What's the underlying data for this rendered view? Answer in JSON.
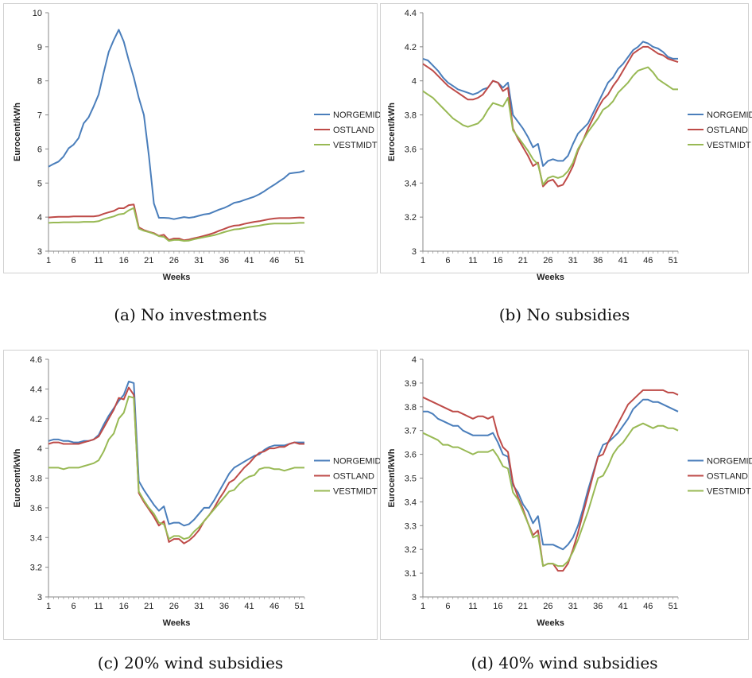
{
  "colors": {
    "NORGEMIDT": "#4a7ebb",
    "OSTLAND": "#be4b48",
    "VESTMIDT": "#98b954",
    "grid": "#000000"
  },
  "legend": [
    "NORGEMIDT",
    "OSTLAND",
    "VESTMIDT"
  ],
  "chart_data": [
    {
      "type": "line",
      "caption": "(a) No investments",
      "xlabel": "Weeks",
      "ylabel": "Eurocent/kWh",
      "x_ticks": [
        "1",
        "6",
        "11",
        "16",
        "21",
        "26",
        "31",
        "36",
        "41",
        "46",
        "51"
      ],
      "y_ticks": [
        "3",
        "4",
        "5",
        "6",
        "7",
        "8",
        "9",
        "10"
      ],
      "ylim": [
        3,
        10
      ],
      "x": [
        1,
        2,
        3,
        4,
        5,
        6,
        7,
        8,
        9,
        10,
        11,
        12,
        13,
        14,
        15,
        16,
        17,
        18,
        19,
        20,
        21,
        22,
        23,
        24,
        25,
        26,
        27,
        28,
        29,
        30,
        31,
        32,
        33,
        34,
        35,
        36,
        37,
        38,
        39,
        40,
        41,
        42,
        43,
        44,
        45,
        46,
        47,
        48,
        49,
        50,
        51,
        52
      ],
      "series": [
        {
          "name": "NORGEMIDT",
          "values": [
            5.48,
            5.56,
            5.63,
            5.78,
            6.02,
            6.13,
            6.32,
            6.75,
            6.93,
            7.25,
            7.6,
            8.25,
            8.85,
            9.2,
            9.5,
            9.15,
            8.6,
            8.1,
            7.5,
            7.0,
            5.8,
            4.4,
            3.98,
            3.98,
            3.97,
            3.94,
            3.97,
            4.0,
            3.98,
            4.0,
            4.04,
            4.08,
            4.1,
            4.16,
            4.22,
            4.27,
            4.34,
            4.42,
            4.45,
            4.5,
            4.55,
            4.6,
            4.67,
            4.76,
            4.86,
            4.95,
            5.05,
            5.15,
            5.28,
            5.3,
            5.32,
            5.36
          ]
        },
        {
          "name": "OSTLAND",
          "values": [
            3.99,
            4.0,
            4.01,
            4.01,
            4.01,
            4.02,
            4.02,
            4.02,
            4.02,
            4.02,
            4.04,
            4.1,
            4.14,
            4.18,
            4.26,
            4.26,
            4.35,
            4.37,
            3.7,
            3.62,
            3.57,
            3.53,
            3.45,
            3.48,
            3.33,
            3.37,
            3.37,
            3.32,
            3.34,
            3.38,
            3.41,
            3.45,
            3.49,
            3.54,
            3.6,
            3.65,
            3.71,
            3.75,
            3.76,
            3.8,
            3.83,
            3.86,
            3.88,
            3.91,
            3.94,
            3.96,
            3.97,
            3.97,
            3.97,
            3.98,
            3.99,
            3.98
          ]
        },
        {
          "name": "VESTMIDT",
          "values": [
            3.83,
            3.84,
            3.84,
            3.85,
            3.85,
            3.85,
            3.85,
            3.86,
            3.86,
            3.86,
            3.88,
            3.94,
            3.98,
            4.02,
            4.08,
            4.1,
            4.2,
            4.27,
            3.66,
            3.6,
            3.56,
            3.51,
            3.44,
            3.42,
            3.3,
            3.33,
            3.33,
            3.3,
            3.31,
            3.35,
            3.38,
            3.41,
            3.44,
            3.47,
            3.51,
            3.56,
            3.6,
            3.64,
            3.65,
            3.68,
            3.71,
            3.73,
            3.75,
            3.78,
            3.8,
            3.81,
            3.81,
            3.81,
            3.81,
            3.82,
            3.83,
            3.83
          ]
        }
      ]
    },
    {
      "type": "line",
      "caption": "(b) No subsidies",
      "xlabel": "Weeks",
      "ylabel": "Eurocent/kWh",
      "x_ticks": [
        "1",
        "6",
        "11",
        "16",
        "21",
        "26",
        "31",
        "36",
        "41",
        "46",
        "51"
      ],
      "y_ticks": [
        "3",
        "3.2",
        "3.4",
        "3.6",
        "3.8",
        "4",
        "4.2",
        "4.4"
      ],
      "ylim": [
        3,
        4.4
      ],
      "x": [
        1,
        2,
        3,
        4,
        5,
        6,
        7,
        8,
        9,
        10,
        11,
        12,
        13,
        14,
        15,
        16,
        17,
        18,
        19,
        20,
        21,
        22,
        23,
        24,
        25,
        26,
        27,
        28,
        29,
        30,
        31,
        32,
        33,
        34,
        35,
        36,
        37,
        38,
        39,
        40,
        41,
        42,
        43,
        44,
        45,
        46,
        47,
        48,
        49,
        50,
        51,
        52
      ],
      "series": [
        {
          "name": "NORGEMIDT",
          "values": [
            4.13,
            4.12,
            4.09,
            4.06,
            4.02,
            3.99,
            3.97,
            3.95,
            3.94,
            3.93,
            3.92,
            3.93,
            3.95,
            3.96,
            4.0,
            3.99,
            3.96,
            3.99,
            3.8,
            3.76,
            3.72,
            3.67,
            3.61,
            3.63,
            3.5,
            3.53,
            3.54,
            3.53,
            3.53,
            3.56,
            3.63,
            3.69,
            3.72,
            3.75,
            3.81,
            3.87,
            3.93,
            3.99,
            4.02,
            4.07,
            4.1,
            4.14,
            4.18,
            4.2,
            4.23,
            4.22,
            4.2,
            4.19,
            4.17,
            4.14,
            4.13,
            4.13
          ]
        },
        {
          "name": "OSTLAND",
          "values": [
            4.1,
            4.08,
            4.06,
            4.03,
            4.0,
            3.97,
            3.95,
            3.93,
            3.91,
            3.89,
            3.89,
            3.9,
            3.92,
            3.96,
            4.0,
            3.99,
            3.94,
            3.96,
            3.72,
            3.66,
            3.61,
            3.56,
            3.5,
            3.52,
            3.38,
            3.41,
            3.42,
            3.38,
            3.39,
            3.44,
            3.5,
            3.59,
            3.65,
            3.72,
            3.78,
            3.84,
            3.89,
            3.92,
            3.97,
            4.01,
            4.06,
            4.11,
            4.16,
            4.18,
            4.2,
            4.2,
            4.18,
            4.16,
            4.15,
            4.13,
            4.12,
            4.11
          ]
        },
        {
          "name": "VESTMIDT",
          "values": [
            3.94,
            3.92,
            3.9,
            3.87,
            3.84,
            3.81,
            3.78,
            3.76,
            3.74,
            3.73,
            3.74,
            3.75,
            3.78,
            3.83,
            3.87,
            3.86,
            3.85,
            3.9,
            3.71,
            3.67,
            3.63,
            3.59,
            3.54,
            3.51,
            3.39,
            3.43,
            3.44,
            3.43,
            3.44,
            3.47,
            3.52,
            3.6,
            3.65,
            3.7,
            3.74,
            3.78,
            3.83,
            3.85,
            3.88,
            3.93,
            3.96,
            3.99,
            4.03,
            4.06,
            4.07,
            4.08,
            4.05,
            4.01,
            3.99,
            3.97,
            3.95,
            3.95
          ]
        }
      ]
    },
    {
      "type": "line",
      "caption": "(c) 20% wind subsidies",
      "xlabel": "Weeks",
      "ylabel": "Eurocent/kWh",
      "x_ticks": [
        "1",
        "6",
        "11",
        "16",
        "21",
        "26",
        "31",
        "36",
        "41",
        "46",
        "51"
      ],
      "y_ticks": [
        "3",
        "3.2",
        "3.4",
        "3.6",
        "3.8",
        "4",
        "4.2",
        "4.4",
        "4.6"
      ],
      "ylim": [
        3,
        4.6
      ],
      "x": [
        1,
        2,
        3,
        4,
        5,
        6,
        7,
        8,
        9,
        10,
        11,
        12,
        13,
        14,
        15,
        16,
        17,
        18,
        19,
        20,
        21,
        22,
        23,
        24,
        25,
        26,
        27,
        28,
        29,
        30,
        31,
        32,
        33,
        34,
        35,
        36,
        37,
        38,
        39,
        40,
        41,
        42,
        43,
        44,
        45,
        46,
        47,
        48,
        49,
        50,
        51,
        52
      ],
      "series": [
        {
          "name": "NORGEMIDT",
          "values": [
            4.05,
            4.06,
            4.06,
            4.05,
            4.05,
            4.04,
            4.04,
            4.05,
            4.05,
            4.06,
            4.09,
            4.16,
            4.22,
            4.27,
            4.32,
            4.36,
            4.45,
            4.44,
            3.78,
            3.72,
            3.67,
            3.62,
            3.58,
            3.61,
            3.49,
            3.5,
            3.5,
            3.48,
            3.49,
            3.52,
            3.56,
            3.6,
            3.6,
            3.65,
            3.71,
            3.77,
            3.83,
            3.87,
            3.89,
            3.91,
            3.93,
            3.95,
            3.96,
            3.99,
            4.01,
            4.02,
            4.02,
            4.02,
            4.03,
            4.04,
            4.04,
            4.04
          ]
        },
        {
          "name": "OSTLAND",
          "values": [
            4.03,
            4.04,
            4.04,
            4.03,
            4.03,
            4.03,
            4.03,
            4.04,
            4.05,
            4.06,
            4.08,
            4.14,
            4.2,
            4.26,
            4.34,
            4.33,
            4.41,
            4.36,
            3.7,
            3.64,
            3.59,
            3.54,
            3.48,
            3.51,
            3.37,
            3.39,
            3.39,
            3.36,
            3.38,
            3.41,
            3.45,
            3.51,
            3.55,
            3.6,
            3.66,
            3.71,
            3.77,
            3.79,
            3.83,
            3.87,
            3.9,
            3.94,
            3.97,
            3.98,
            4.0,
            4.0,
            4.01,
            4.01,
            4.03,
            4.04,
            4.03,
            4.03
          ]
        },
        {
          "name": "VESTMIDT",
          "values": [
            3.87,
            3.87,
            3.87,
            3.86,
            3.87,
            3.87,
            3.87,
            3.88,
            3.89,
            3.9,
            3.92,
            3.98,
            4.06,
            4.1,
            4.2,
            4.24,
            4.35,
            4.34,
            3.71,
            3.65,
            3.6,
            3.56,
            3.5,
            3.49,
            3.39,
            3.41,
            3.41,
            3.39,
            3.4,
            3.44,
            3.47,
            3.51,
            3.55,
            3.59,
            3.63,
            3.67,
            3.71,
            3.72,
            3.76,
            3.79,
            3.81,
            3.82,
            3.86,
            3.87,
            3.87,
            3.86,
            3.86,
            3.85,
            3.86,
            3.87,
            3.87,
            3.87
          ]
        }
      ]
    },
    {
      "type": "line",
      "caption": "(d) 40% wind subsidies",
      "xlabel": "Weeks",
      "ylabel": "Eurocent/kWh",
      "x_ticks": [
        "1",
        "6",
        "11",
        "16",
        "21",
        "26",
        "31",
        "36",
        "41",
        "46",
        "51"
      ],
      "y_ticks": [
        "3",
        "3.1",
        "3.2",
        "3.3",
        "3.4",
        "3.5",
        "3.6",
        "3.7",
        "3.8",
        "3.9",
        "4"
      ],
      "ylim": [
        3,
        4
      ],
      "x": [
        1,
        2,
        3,
        4,
        5,
        6,
        7,
        8,
        9,
        10,
        11,
        12,
        13,
        14,
        15,
        16,
        17,
        18,
        19,
        20,
        21,
        22,
        23,
        24,
        25,
        26,
        27,
        28,
        29,
        30,
        31,
        32,
        33,
        34,
        35,
        36,
        37,
        38,
        39,
        40,
        41,
        42,
        43,
        44,
        45,
        46,
        47,
        48,
        49,
        50,
        51,
        52
      ],
      "series": [
        {
          "name": "NORGEMIDT",
          "values": [
            3.78,
            3.78,
            3.77,
            3.75,
            3.74,
            3.73,
            3.72,
            3.72,
            3.7,
            3.69,
            3.68,
            3.68,
            3.68,
            3.68,
            3.69,
            3.65,
            3.6,
            3.59,
            3.47,
            3.44,
            3.39,
            3.36,
            3.31,
            3.34,
            3.22,
            3.22,
            3.22,
            3.21,
            3.2,
            3.22,
            3.25,
            3.3,
            3.37,
            3.45,
            3.52,
            3.59,
            3.64,
            3.65,
            3.67,
            3.69,
            3.72,
            3.75,
            3.79,
            3.81,
            3.83,
            3.83,
            3.82,
            3.82,
            3.81,
            3.8,
            3.79,
            3.78
          ]
        },
        {
          "name": "OSTLAND",
          "values": [
            3.84,
            3.83,
            3.82,
            3.81,
            3.8,
            3.79,
            3.78,
            3.78,
            3.77,
            3.76,
            3.75,
            3.76,
            3.76,
            3.75,
            3.76,
            3.68,
            3.63,
            3.61,
            3.48,
            3.42,
            3.37,
            3.31,
            3.26,
            3.28,
            3.13,
            3.14,
            3.14,
            3.11,
            3.11,
            3.14,
            3.2,
            3.27,
            3.35,
            3.43,
            3.51,
            3.59,
            3.6,
            3.65,
            3.69,
            3.73,
            3.77,
            3.81,
            3.83,
            3.85,
            3.87,
            3.87,
            3.87,
            3.87,
            3.87,
            3.86,
            3.86,
            3.85
          ]
        },
        {
          "name": "VESTMIDT",
          "values": [
            3.69,
            3.68,
            3.67,
            3.66,
            3.64,
            3.64,
            3.63,
            3.63,
            3.62,
            3.61,
            3.6,
            3.61,
            3.61,
            3.61,
            3.62,
            3.59,
            3.55,
            3.54,
            3.44,
            3.41,
            3.36,
            3.31,
            3.25,
            3.26,
            3.13,
            3.14,
            3.14,
            3.13,
            3.13,
            3.15,
            3.19,
            3.24,
            3.3,
            3.36,
            3.43,
            3.5,
            3.51,
            3.55,
            3.6,
            3.63,
            3.65,
            3.68,
            3.71,
            3.72,
            3.73,
            3.72,
            3.71,
            3.72,
            3.72,
            3.71,
            3.71,
            3.7
          ]
        }
      ]
    }
  ]
}
